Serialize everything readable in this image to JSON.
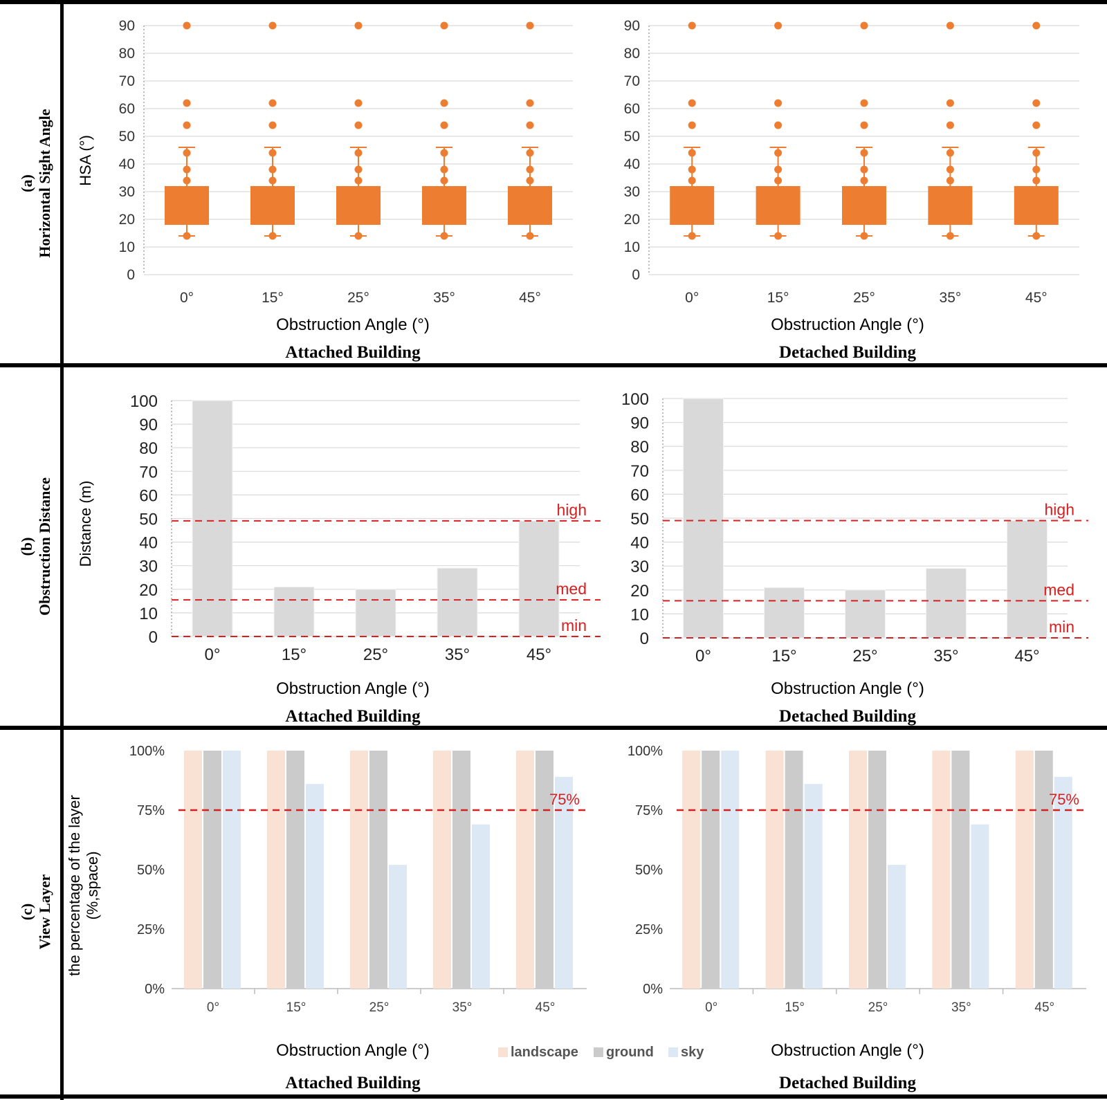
{
  "rows": [
    {
      "letter": "(a)",
      "title": "Horizontal Sight Angle"
    },
    {
      "letter": "(b)",
      "title": "Obstruction Distance"
    },
    {
      "letter": "(c)",
      "title": "View Layer"
    }
  ],
  "xlabel": "Obstruction Angle (°)",
  "panel_titles": [
    "Attached Building",
    "Detached Building"
  ],
  "ylabels": {
    "a": "HSA (°)",
    "b": "Distance (m)",
    "c_line1": "the percentage of the layer",
    "c_line2": "(%,space)"
  },
  "legend": [
    {
      "label": "landscape",
      "color": "#f9e1d4"
    },
    {
      "label": "ground",
      "color": "#cccbcb"
    },
    {
      "label": "sky",
      "color": "#dde8f5"
    }
  ],
  "colors": {
    "box": "#ed7d31",
    "bar": "#d9d9d9",
    "threshold": "#d62020",
    "grid": "#d9d9d9"
  },
  "chart_data": [
    {
      "type": "box",
      "panel": "a-attached",
      "categories": [
        "0°",
        "15°",
        "25°",
        "35°",
        "45°"
      ],
      "ylim": [
        0,
        90
      ],
      "yticks": [
        0,
        10,
        20,
        30,
        40,
        50,
        60,
        70,
        80,
        90
      ],
      "ylabel": "HSA (°)",
      "xlabel": "Obstruction Angle (°)",
      "title": "Attached Building",
      "box": {
        "q1": 18,
        "q3": 32,
        "whisker_low": 14,
        "whisker_high": 46
      },
      "points": [
        14,
        34,
        38,
        44,
        54,
        62,
        90
      ]
    },
    {
      "type": "box",
      "panel": "a-detached",
      "categories": [
        "0°",
        "15°",
        "25°",
        "35°",
        "45°"
      ],
      "ylim": [
        0,
        90
      ],
      "yticks": [
        0,
        10,
        20,
        30,
        40,
        50,
        60,
        70,
        80,
        90
      ],
      "xlabel": "Obstruction Angle (°)",
      "title": "Detached Building",
      "box": {
        "q1": 18,
        "q3": 32,
        "whisker_low": 14,
        "whisker_high": 46
      },
      "points": [
        14,
        34,
        38,
        44,
        54,
        62,
        90
      ]
    },
    {
      "type": "bar",
      "panel": "b-attached",
      "categories": [
        "0°",
        "15°",
        "25°",
        "35°",
        "45°"
      ],
      "values": [
        100,
        21,
        20,
        29,
        49
      ],
      "ylim": [
        0,
        100
      ],
      "yticks": [
        0,
        10,
        20,
        30,
        40,
        50,
        60,
        70,
        80,
        90,
        100
      ],
      "ylabel": "Distance (m)",
      "xlabel": "Obstruction Angle (°)",
      "title": "Attached Building",
      "thresholds": [
        {
          "label": "high",
          "value": 49
        },
        {
          "label": "med",
          "value": 15.5
        },
        {
          "label": "min",
          "value": 0
        }
      ]
    },
    {
      "type": "bar",
      "panel": "b-detached",
      "categories": [
        "0°",
        "15°",
        "25°",
        "35°",
        "45°"
      ],
      "values": [
        100,
        21,
        20,
        29,
        49
      ],
      "ylim": [
        0,
        100
      ],
      "yticks": [
        0,
        10,
        20,
        30,
        40,
        50,
        60,
        70,
        80,
        90,
        100
      ],
      "xlabel": "Obstruction Angle (°)",
      "title": "Detached Building",
      "thresholds": [
        {
          "label": "high",
          "value": 49
        },
        {
          "label": "med",
          "value": 15.5
        },
        {
          "label": "min",
          "value": 0
        }
      ]
    },
    {
      "type": "bar",
      "panel": "c-attached",
      "categories": [
        "0°",
        "15°",
        "25°",
        "35°",
        "45°"
      ],
      "series": [
        {
          "name": "landscape",
          "values": [
            100,
            100,
            100,
            100,
            100
          ]
        },
        {
          "name": "ground",
          "values": [
            100,
            100,
            100,
            100,
            100
          ]
        },
        {
          "name": "sky",
          "values": [
            100,
            86,
            52,
            69,
            89
          ]
        }
      ],
      "ylim": [
        0,
        100
      ],
      "yticks": [
        "0%",
        "25%",
        "50%",
        "75%",
        "100%"
      ],
      "ylabel": "the percentage of the layer (%,space)",
      "xlabel": "Obstruction Angle (°)",
      "title": "Attached Building",
      "threshold": {
        "label": "75%",
        "value": 75
      }
    },
    {
      "type": "bar",
      "panel": "c-detached",
      "categories": [
        "0°",
        "15°",
        "25°",
        "35°",
        "45°"
      ],
      "series": [
        {
          "name": "landscape",
          "values": [
            100,
            100,
            100,
            100,
            100
          ]
        },
        {
          "name": "ground",
          "values": [
            100,
            100,
            100,
            100,
            100
          ]
        },
        {
          "name": "sky",
          "values": [
            100,
            86,
            52,
            69,
            89
          ]
        }
      ],
      "ylim": [
        0,
        100
      ],
      "yticks": [
        "0%",
        "25%",
        "50%",
        "75%",
        "100%"
      ],
      "xlabel": "Obstruction Angle (°)",
      "title": "Detached Building",
      "threshold": {
        "label": "75%",
        "value": 75
      }
    }
  ]
}
